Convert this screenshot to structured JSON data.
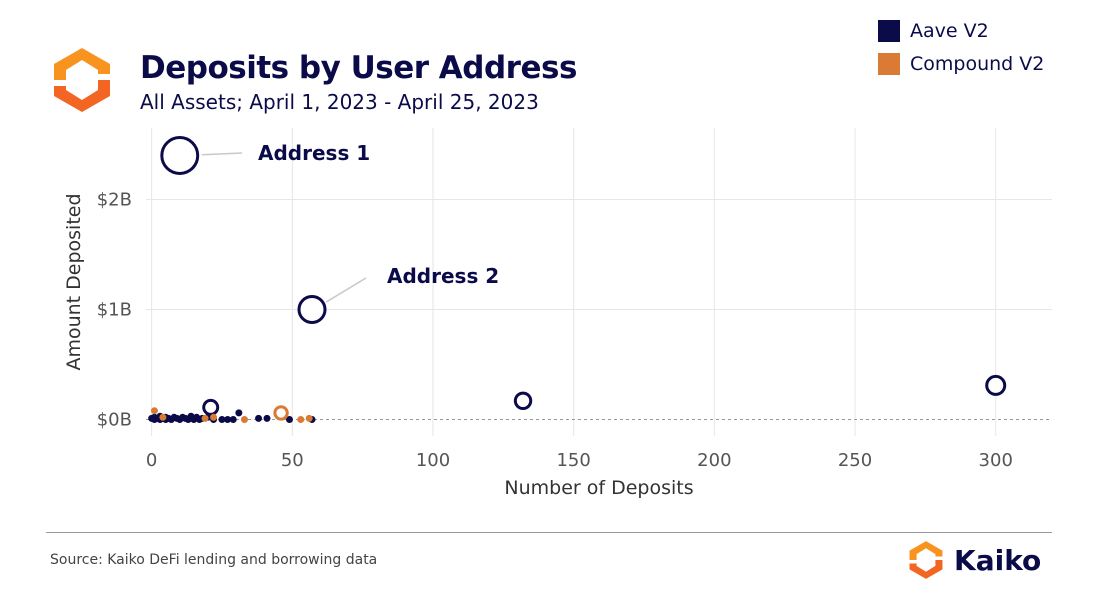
{
  "header": {
    "title": "Deposits by User Address",
    "subtitle": "All Assets; April 1, 2023 - April 25, 2023",
    "logo_icon": "kaiko-logo-icon"
  },
  "legend": [
    {
      "label": "Aave V2",
      "color": "#0b0b4a"
    },
    {
      "label": "Compound V2",
      "color": "#d97b35"
    }
  ],
  "footer": {
    "source": "Source: Kaiko DeFi lending and borrowing data",
    "brand": "Kaiko"
  },
  "chart_data": {
    "type": "scatter",
    "xlabel": "Number of Deposits",
    "ylabel": "Amount Deposited",
    "xlim": [
      -2,
      320
    ],
    "ylim": [
      -0.15,
      2.65
    ],
    "xticks": [
      0,
      50,
      100,
      150,
      200,
      250,
      300
    ],
    "xtick_labels": [
      "0",
      "50",
      "100",
      "150",
      "200",
      "250",
      "300"
    ],
    "yticks": [
      0,
      1,
      2
    ],
    "ytick_labels": [
      "$0B",
      "$1B",
      "$2B"
    ],
    "grid": true,
    "legend_position": "top-right",
    "series": [
      {
        "name": "Aave V2",
        "color": "#0b0b4a",
        "points": [
          {
            "x": 10,
            "y": 2.4,
            "size": 2.4
          },
          {
            "x": 57,
            "y": 1.0,
            "size": 1.0
          },
          {
            "x": 300,
            "y": 0.31,
            "size": 0.31
          },
          {
            "x": 132,
            "y": 0.17,
            "size": 0.17
          },
          {
            "x": 21,
            "y": 0.11,
            "size": 0.11
          },
          {
            "x": 0,
            "y": 0.01
          },
          {
            "x": 1,
            "y": 0.02
          },
          {
            "x": 1,
            "y": 0.0
          },
          {
            "x": 2,
            "y": 0.01
          },
          {
            "x": 3,
            "y": 0.0
          },
          {
            "x": 3,
            "y": 0.03
          },
          {
            "x": 4,
            "y": 0.01
          },
          {
            "x": 5,
            "y": 0.02
          },
          {
            "x": 5,
            "y": 0.0
          },
          {
            "x": 6,
            "y": 0.01
          },
          {
            "x": 7,
            "y": 0.0
          },
          {
            "x": 8,
            "y": 0.02
          },
          {
            "x": 9,
            "y": 0.01
          },
          {
            "x": 10,
            "y": 0.0
          },
          {
            "x": 11,
            "y": 0.02
          },
          {
            "x": 12,
            "y": 0.01
          },
          {
            "x": 13,
            "y": 0.0
          },
          {
            "x": 14,
            "y": 0.03
          },
          {
            "x": 15,
            "y": 0.0
          },
          {
            "x": 16,
            "y": 0.02
          },
          {
            "x": 17,
            "y": 0.0
          },
          {
            "x": 18,
            "y": 0.01
          },
          {
            "x": 20,
            "y": 0.02
          },
          {
            "x": 22,
            "y": 0.0
          },
          {
            "x": 25,
            "y": 0.0
          },
          {
            "x": 27,
            "y": 0.0
          },
          {
            "x": 29,
            "y": 0.0
          },
          {
            "x": 31,
            "y": 0.06
          },
          {
            "x": 38,
            "y": 0.01
          },
          {
            "x": 41,
            "y": 0.01
          },
          {
            "x": 49,
            "y": 0.0
          },
          {
            "x": 57,
            "y": 0.0
          }
        ]
      },
      {
        "name": "Compound V2",
        "color": "#d97b35",
        "points": [
          {
            "x": 1,
            "y": 0.08
          },
          {
            "x": 46,
            "y": 0.06,
            "size": 0.06
          },
          {
            "x": 4,
            "y": 0.02
          },
          {
            "x": 19,
            "y": 0.01
          },
          {
            "x": 22,
            "y": 0.02
          },
          {
            "x": 33,
            "y": 0.0
          },
          {
            "x": 53,
            "y": 0.0
          },
          {
            "x": 56,
            "y": 0.01
          }
        ]
      }
    ],
    "annotations": [
      {
        "text": "Address 1",
        "target_x": 10,
        "target_y": 2.4
      },
      {
        "text": "Address 2",
        "target_x": 57,
        "target_y": 1.0
      }
    ]
  }
}
